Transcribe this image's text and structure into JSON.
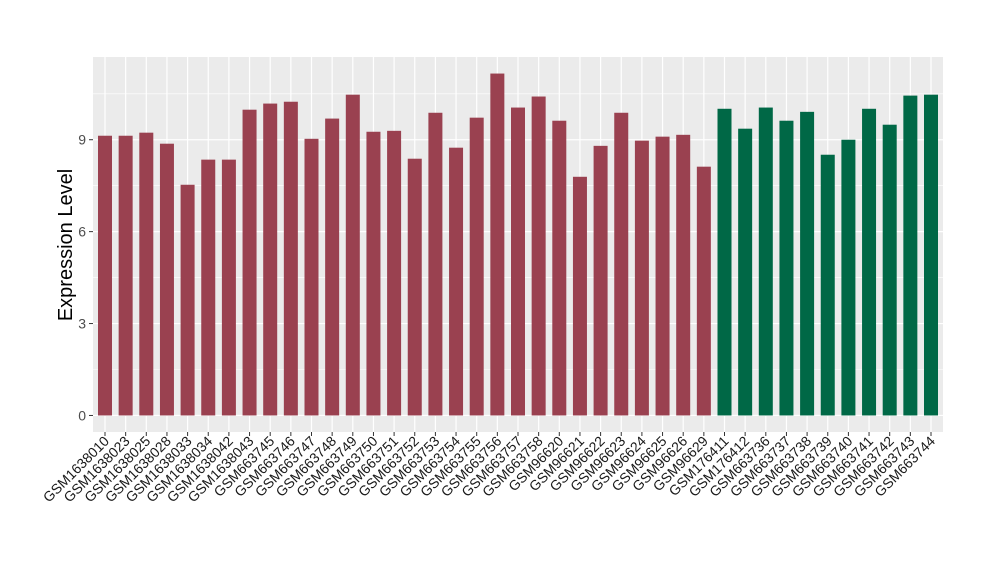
{
  "chart_data": {
    "type": "bar",
    "title": "",
    "xlabel": "",
    "ylabel": "Expression Level",
    "ylim": [
      -0.54,
      11.7
    ],
    "yticks": [
      0,
      3,
      6,
      9
    ],
    "grid": true,
    "legend": "none",
    "colors": {
      "group1": "#9A4150",
      "group2": "#006846",
      "panel": "#EBEBEB",
      "grid": "#FFFFFF"
    },
    "categories": [
      "GSM1638010",
      "GSM1638023",
      "GSM1638025",
      "GSM1638028",
      "GSM1638033",
      "GSM1638034",
      "GSM1638042",
      "GSM1638043",
      "GSM663745",
      "GSM663746",
      "GSM663747",
      "GSM663748",
      "GSM663749",
      "GSM663750",
      "GSM663751",
      "GSM663752",
      "GSM663753",
      "GSM663754",
      "GSM663755",
      "GSM663756",
      "GSM663757",
      "GSM663758",
      "GSM96620",
      "GSM96621",
      "GSM96622",
      "GSM96623",
      "GSM96624",
      "GSM96625",
      "GSM96626",
      "GSM96629",
      "GSM176411",
      "GSM176412",
      "GSM663736",
      "GSM663737",
      "GSM663738",
      "GSM663739",
      "GSM663740",
      "GSM663741",
      "GSM663742",
      "GSM663743",
      "GSM663744"
    ],
    "values": [
      9.13,
      9.13,
      9.23,
      8.87,
      7.53,
      8.35,
      8.35,
      9.98,
      10.18,
      10.24,
      9.03,
      9.69,
      10.47,
      9.26,
      9.29,
      8.38,
      9.88,
      8.74,
      9.72,
      11.16,
      10.05,
      10.41,
      9.62,
      7.79,
      8.8,
      9.88,
      8.97,
      9.1,
      9.16,
      8.12,
      10.01,
      9.36,
      10.05,
      9.62,
      9.91,
      8.51,
      9.0,
      10.01,
      9.49,
      10.44,
      10.47
    ],
    "groups": [
      1,
      1,
      1,
      1,
      1,
      1,
      1,
      1,
      1,
      1,
      1,
      1,
      1,
      1,
      1,
      1,
      1,
      1,
      1,
      1,
      1,
      1,
      1,
      1,
      1,
      1,
      1,
      1,
      1,
      1,
      2,
      2,
      2,
      2,
      2,
      2,
      2,
      2,
      2,
      2,
      2
    ]
  }
}
